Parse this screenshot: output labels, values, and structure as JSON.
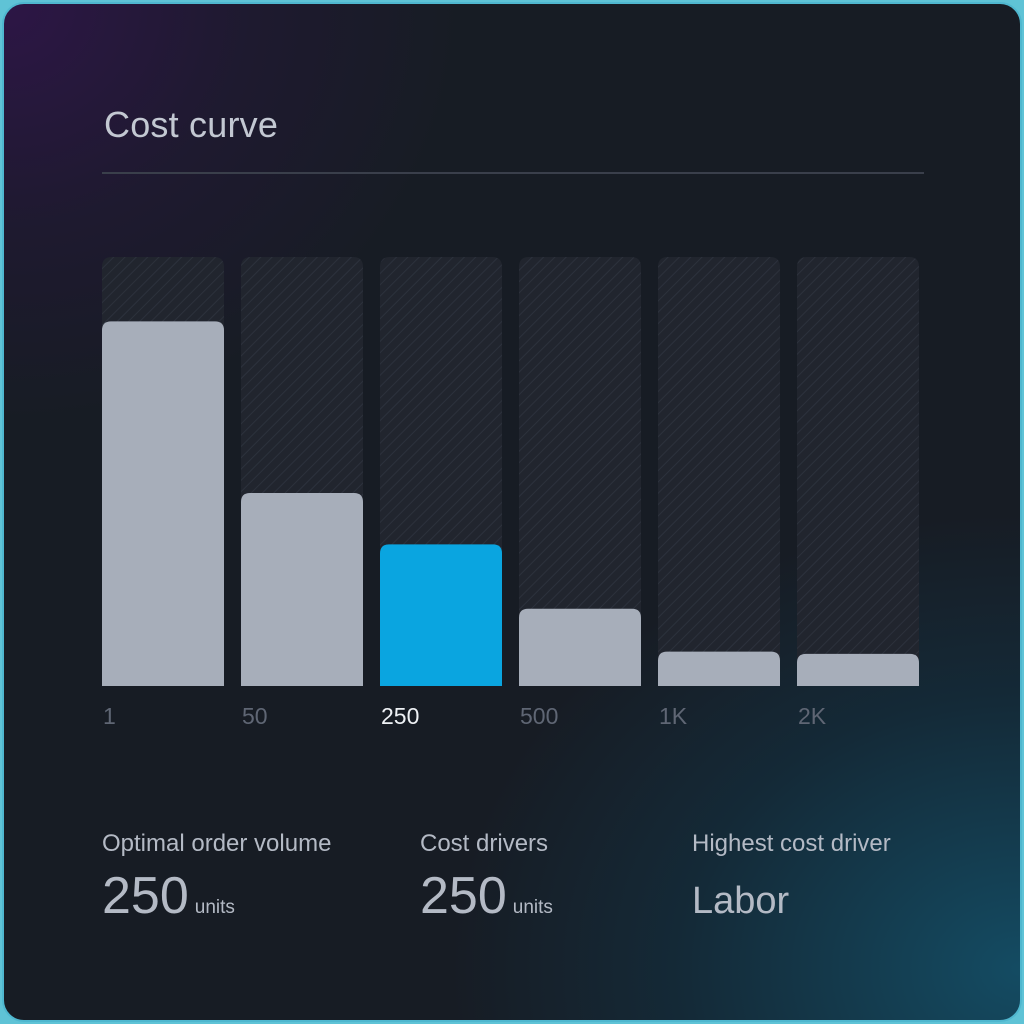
{
  "card": {
    "title": "Cost curve"
  },
  "chart_data": {
    "type": "bar",
    "title": "Cost curve",
    "categories": [
      "1",
      "50",
      "250",
      "500",
      "1K",
      "2K"
    ],
    "values": [
      85,
      45,
      33,
      18,
      8,
      7.5
    ],
    "ylim": [
      0,
      100
    ],
    "highlight_index": 2,
    "xlabel": "",
    "ylabel": "",
    "grid": false,
    "colors": {
      "bar": "#a7aeba",
      "highlight": "#0aa5e0",
      "track": "#22262f",
      "track_hatch": "#2e3440",
      "tick": "#5f6674",
      "tick_highlight": "#eef1f5"
    }
  },
  "stats": [
    {
      "label": "Optimal order volume",
      "value": "250",
      "unit": "units"
    },
    {
      "label": "Cost drivers",
      "value": "250",
      "unit": "units"
    },
    {
      "label": "Highest cost driver",
      "value": "Labor"
    }
  ]
}
